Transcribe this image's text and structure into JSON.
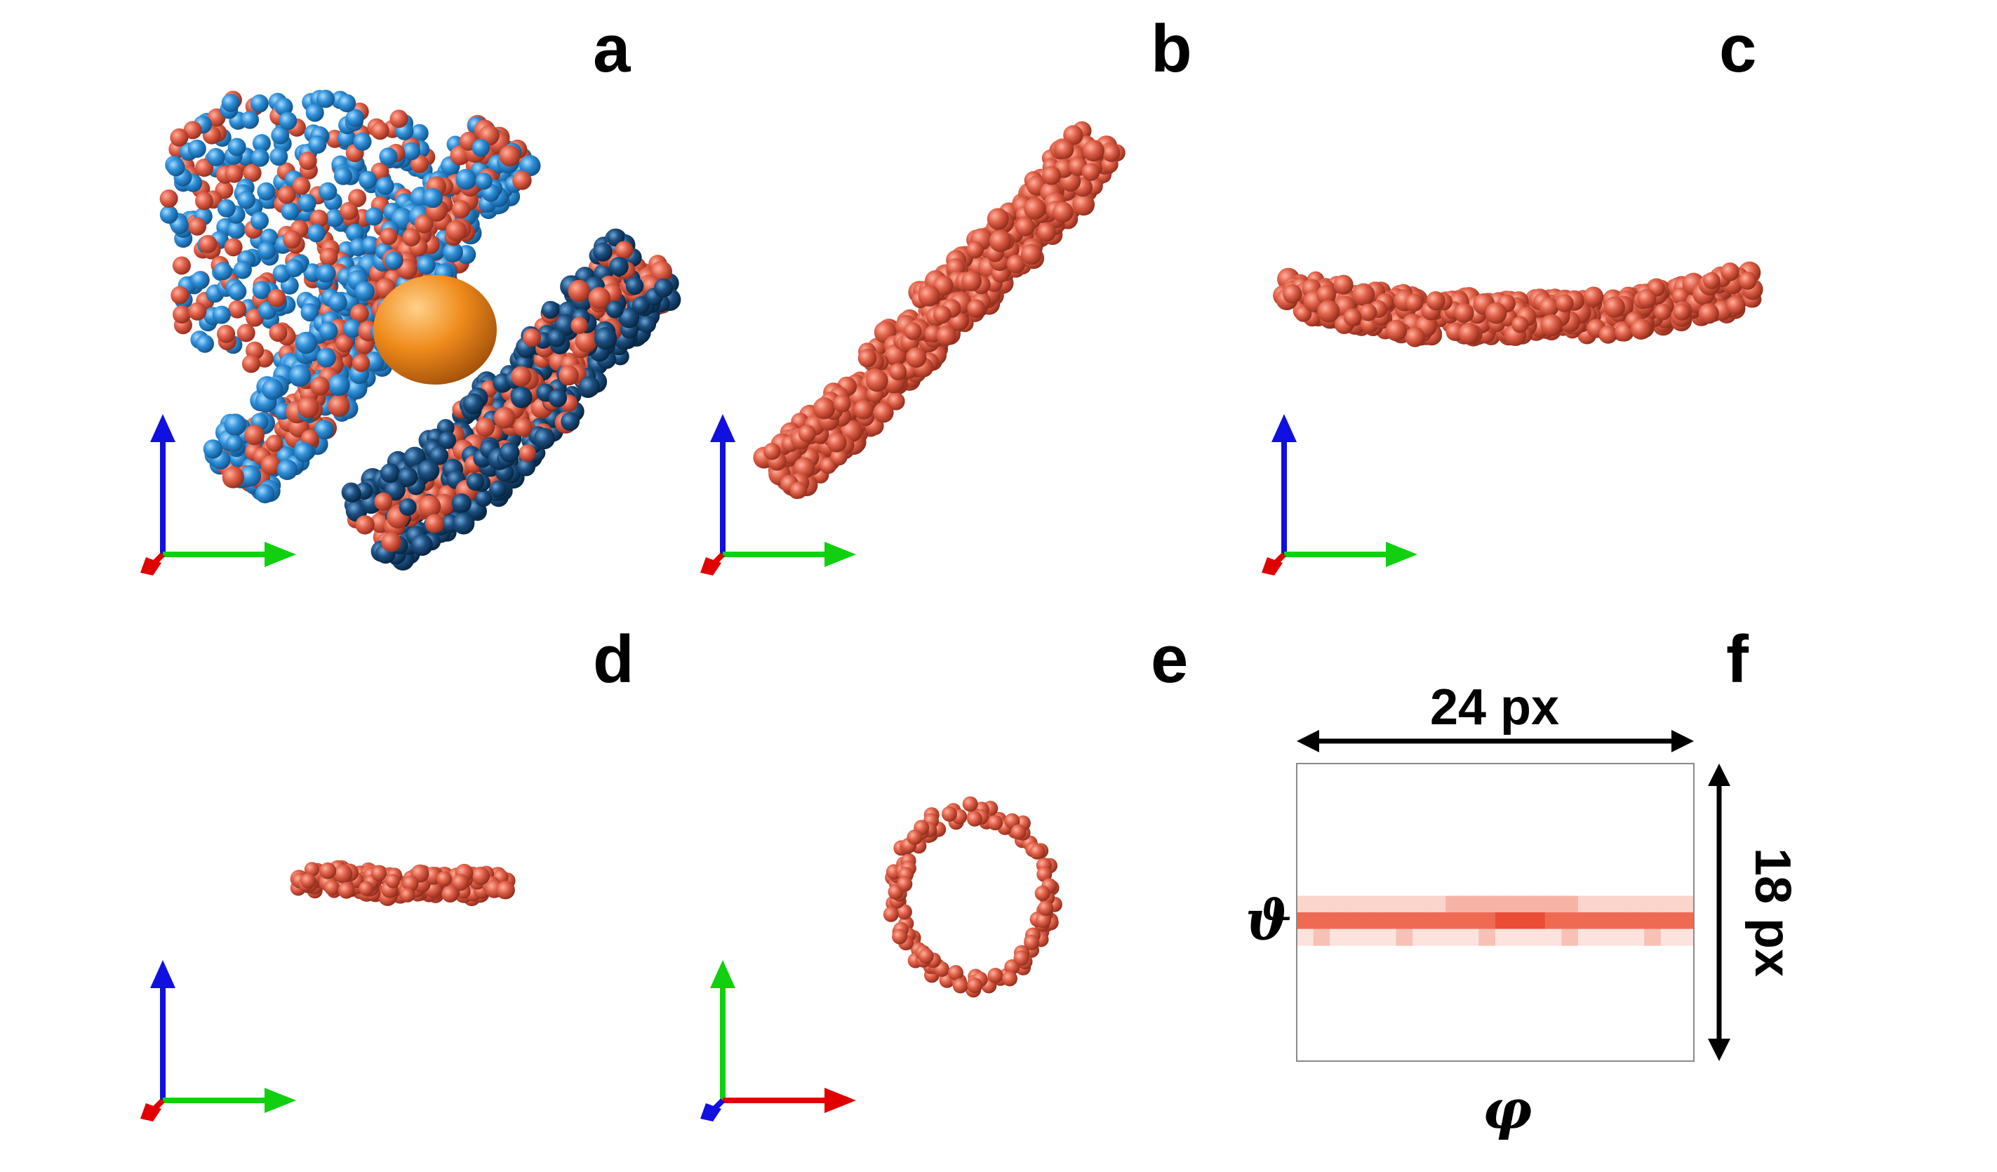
{
  "panels": [
    {
      "id": "a",
      "label": "a"
    },
    {
      "id": "b",
      "label": "b"
    },
    {
      "id": "c",
      "label": "c"
    },
    {
      "id": "d",
      "label": "d"
    },
    {
      "id": "e",
      "label": "e"
    },
    {
      "id": "f",
      "label": "f"
    }
  ],
  "panel_f": {
    "width_label": "24 px",
    "height_label": "18 px",
    "theta_label": "ϑ",
    "phi_label": "φ",
    "grid": {
      "cols": 24,
      "rows": 18
    }
  },
  "colors": {
    "bead_red": "#e06048",
    "bead_blue": "#2f8fd8",
    "bead_dark_blue": "#1c4f80",
    "core_orange": "#f08c1c",
    "axis_red": "#e00000",
    "axis_green": "#10d010",
    "axis_blue": "#1010e0"
  }
}
